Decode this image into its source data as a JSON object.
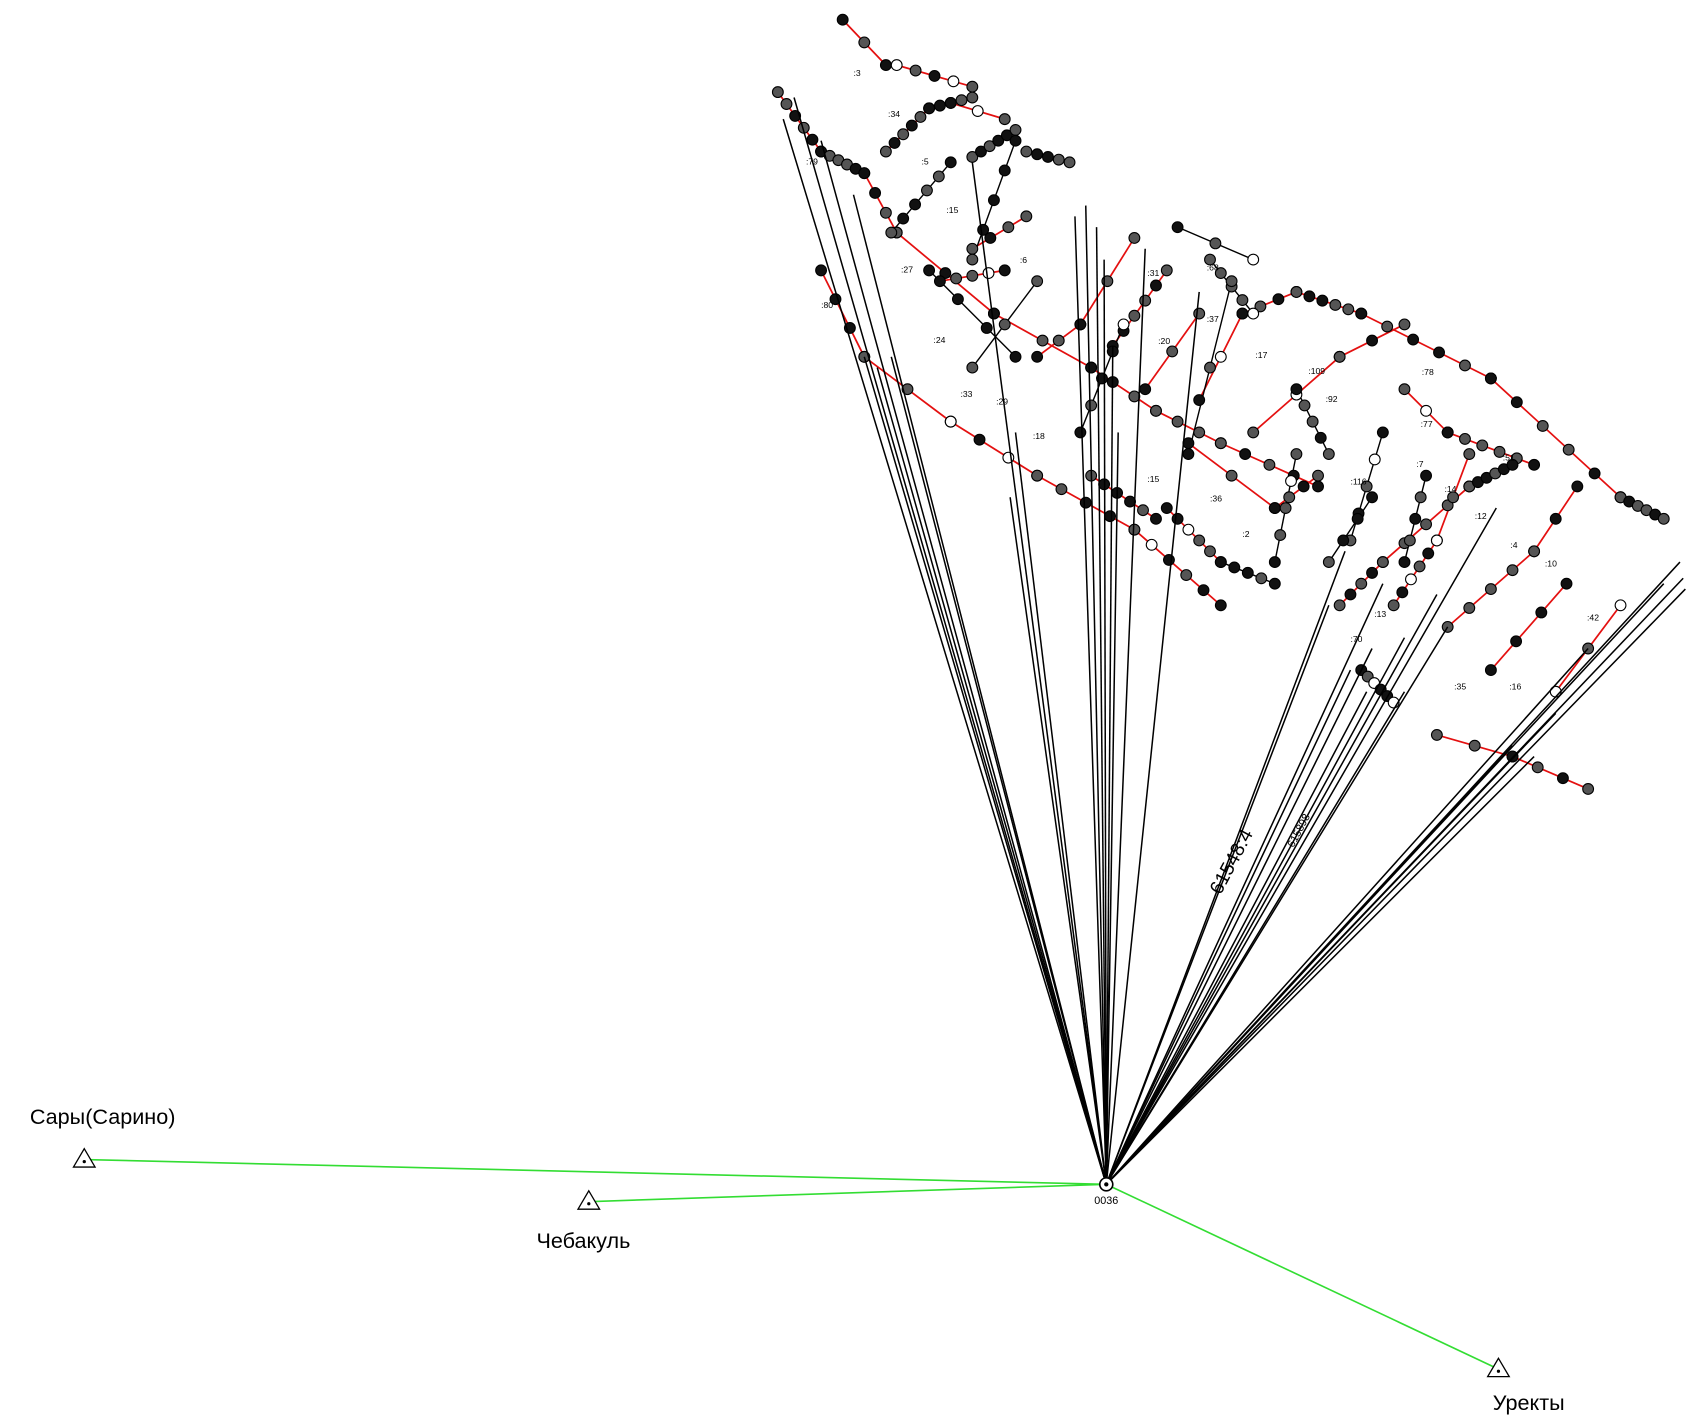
{
  "center": {
    "label": "0036"
  },
  "stations": [
    {
      "label": "Сары(Сарино)"
    },
    {
      "label": "Чебакуль"
    },
    {
      "label": "Уректы"
    }
  ],
  "blocks": [
    "61548:4",
    "615898"
  ],
  "parcels": [
    ":3",
    ":34",
    ":79",
    ":5",
    ":15",
    ":27",
    ":6",
    ":80",
    ":24",
    ":33",
    ":29",
    ":18",
    ":31",
    ":68",
    ":20",
    ":37",
    ":17",
    ":109",
    ":92",
    ":15",
    ":36",
    ":2",
    ":116",
    ":7",
    ":14",
    ":78",
    ":77",
    ":51",
    ":12",
    ":4",
    ":10",
    ":42",
    ":70",
    ":13",
    ":35",
    ":16"
  ]
}
